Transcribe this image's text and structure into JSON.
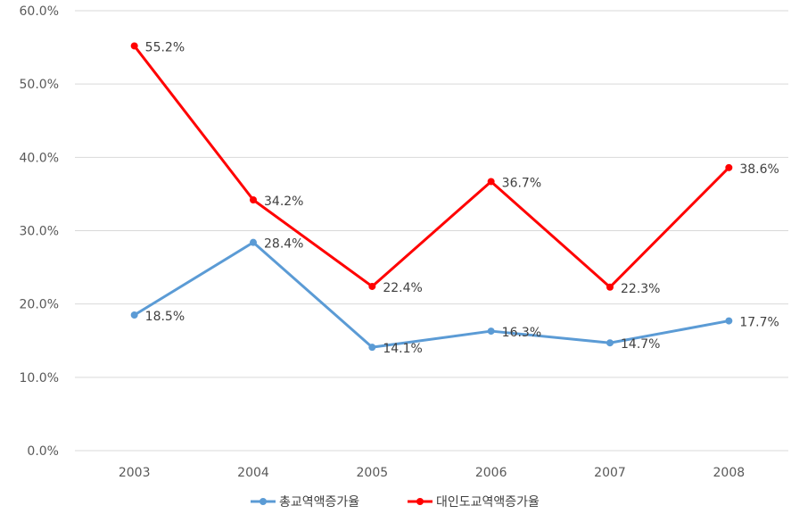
{
  "chart_data": {
    "type": "line",
    "title": "",
    "xlabel": "",
    "ylabel": "",
    "categories": [
      "2003",
      "2004",
      "2005",
      "2006",
      "2007",
      "2008"
    ],
    "ylim": [
      0,
      60
    ],
    "y_ticks": [
      "0.0%",
      "10.0%",
      "20.0%",
      "30.0%",
      "40.0%",
      "50.0%",
      "60.0%"
    ],
    "grid": true,
    "legend_position": "bottom",
    "series": [
      {
        "name": "총교역액증가율",
        "color": "#5b9bd5",
        "values": [
          18.5,
          28.4,
          14.1,
          16.3,
          14.7,
          17.7
        ],
        "labels": [
          "18.5%",
          "28.4%",
          "14.1%",
          "16.3%",
          "14.7%",
          "17.7%"
        ]
      },
      {
        "name": "대인도교역액증가율",
        "color": "#ff0000",
        "values": [
          55.2,
          34.2,
          22.4,
          36.7,
          22.3,
          38.6
        ],
        "labels": [
          "55.2%",
          "34.2%",
          "22.4%",
          "36.7%",
          "22.3%",
          "38.6%"
        ]
      }
    ]
  }
}
